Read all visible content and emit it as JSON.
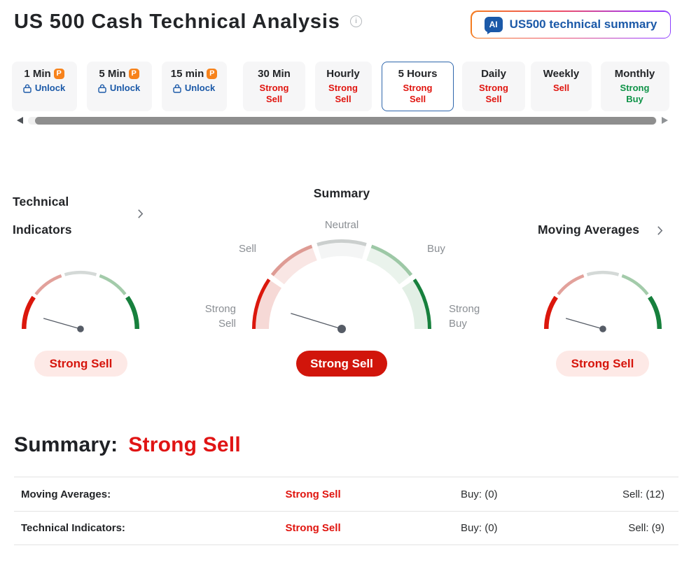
{
  "header": {
    "title": "US 500 Cash Technical Analysis",
    "ai_button": {
      "badge": "AI",
      "label": "US500 technical summary"
    }
  },
  "tabs": [
    {
      "label": "1 Min",
      "pro": true,
      "locked": true,
      "action": "Unlock"
    },
    {
      "label": "5 Min",
      "pro": true,
      "locked": true,
      "action": "Unlock"
    },
    {
      "label": "15 min",
      "pro": true,
      "locked": true,
      "action": "Unlock"
    },
    {
      "label": "30 Min",
      "signal": "Strong Sell",
      "signal_type": "sell"
    },
    {
      "label": "Hourly",
      "signal": "Strong Sell",
      "signal_type": "sell"
    },
    {
      "label": "5 Hours",
      "signal": "Strong Sell",
      "signal_type": "sell",
      "selected": true
    },
    {
      "label": "Daily",
      "signal": "Strong Sell",
      "signal_type": "sell"
    },
    {
      "label": "Weekly",
      "signal": "Sell",
      "signal_type": "sell"
    },
    {
      "label": "Monthly",
      "signal": "Strong Buy",
      "signal_type": "buy"
    }
  ],
  "gauges": {
    "left": {
      "title": "Technical Indicators",
      "verdict": "Strong Sell",
      "needle_deg": 164
    },
    "center": {
      "title": "Summary",
      "verdict": "Strong Sell",
      "needle_deg": 163,
      "labels": {
        "strong_sell": "Strong Sell",
        "sell": "Sell",
        "neutral": "Neutral",
        "buy": "Buy",
        "strong_buy": "Strong Buy"
      }
    },
    "right": {
      "title": "Moving Averages",
      "verdict": "Strong Sell",
      "needle_deg": 164
    },
    "colors": {
      "band_fill": [
        "#F6D9D6",
        "#F9E6E4",
        "#F4F5F5",
        "#EAF3EC",
        "#E2EFE5"
      ],
      "band_edge": [
        "#DB170C",
        "#DE9B94",
        "#CBCFCE",
        "#9DC8A6",
        "#17803D"
      ],
      "thin": [
        "#DB170C",
        "#E2A19B",
        "#D4D9D7",
        "#A3CBAA",
        "#17803D"
      ],
      "needle": "#565C66"
    }
  },
  "summary_section": {
    "heading": "Summary:",
    "value": "Strong Sell",
    "rows": [
      {
        "name": "Moving Averages:",
        "signal": "Strong Sell",
        "buy": "Buy: (0)",
        "sell": "Sell: (12)"
      },
      {
        "name": "Technical Indicators:",
        "signal": "Strong Sell",
        "buy": "Buy: (0)",
        "sell": "Sell: (9)"
      }
    ]
  },
  "icons": {
    "info": "info-circle",
    "lock": "padlock",
    "chevron": "chevron-right",
    "scroll_left": "triangle-left",
    "scroll_right": "triangle-right"
  }
}
